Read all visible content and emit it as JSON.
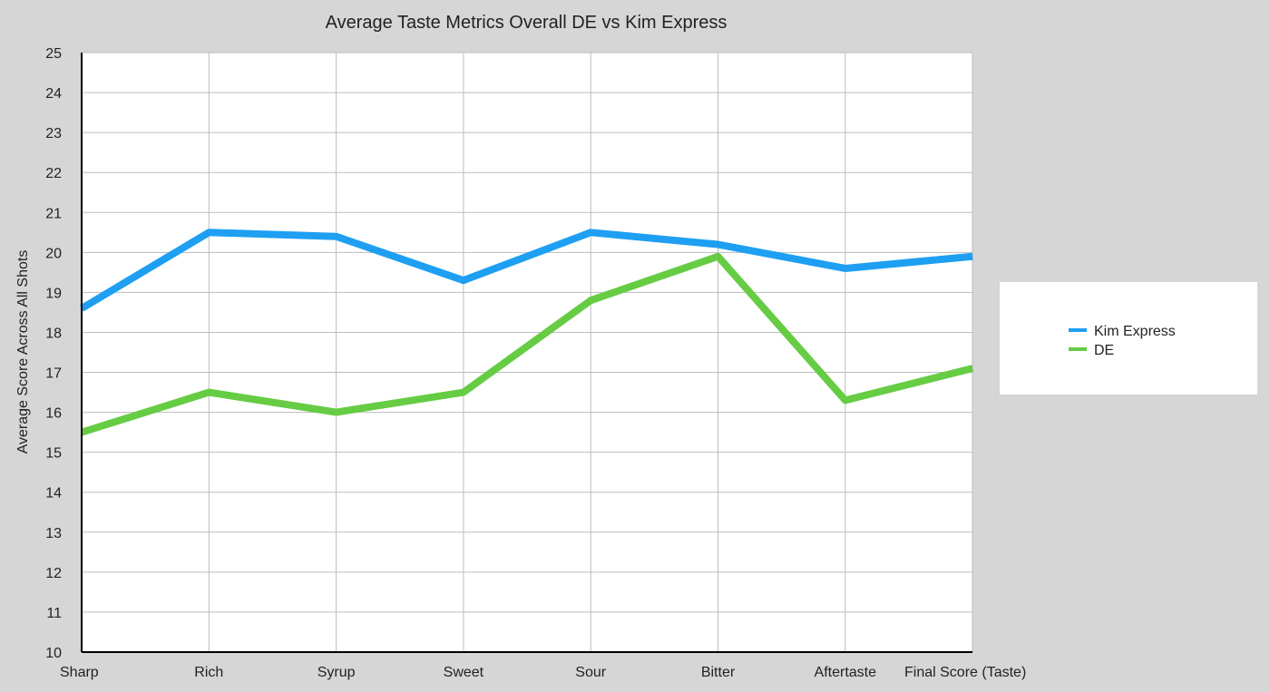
{
  "chart_data": {
    "type": "line",
    "title": "Average Taste Metrics Overall DE vs Kim Express",
    "xlabel": "",
    "ylabel": "Average Score Across All Shots",
    "categories": [
      "Sharp",
      "Rich",
      "Syrup",
      "Sweet",
      "Sour",
      "Bitter",
      "Aftertaste",
      "Final Score (Taste)"
    ],
    "ylim": [
      10,
      25
    ],
    "yticks": [
      10,
      11,
      12,
      13,
      14,
      15,
      16,
      17,
      18,
      19,
      20,
      21,
      22,
      23,
      24,
      25
    ],
    "grid": true,
    "legend_position": "right",
    "series": [
      {
        "name": "Kim Express",
        "color": "#1e9ff2",
        "values": [
          18.6,
          20.5,
          20.4,
          19.3,
          20.5,
          20.2,
          19.6,
          19.9
        ]
      },
      {
        "name": "DE",
        "color": "#66cc44",
        "values": [
          15.5,
          16.5,
          16.0,
          16.5,
          18.8,
          19.9,
          16.3,
          17.1
        ]
      }
    ]
  }
}
